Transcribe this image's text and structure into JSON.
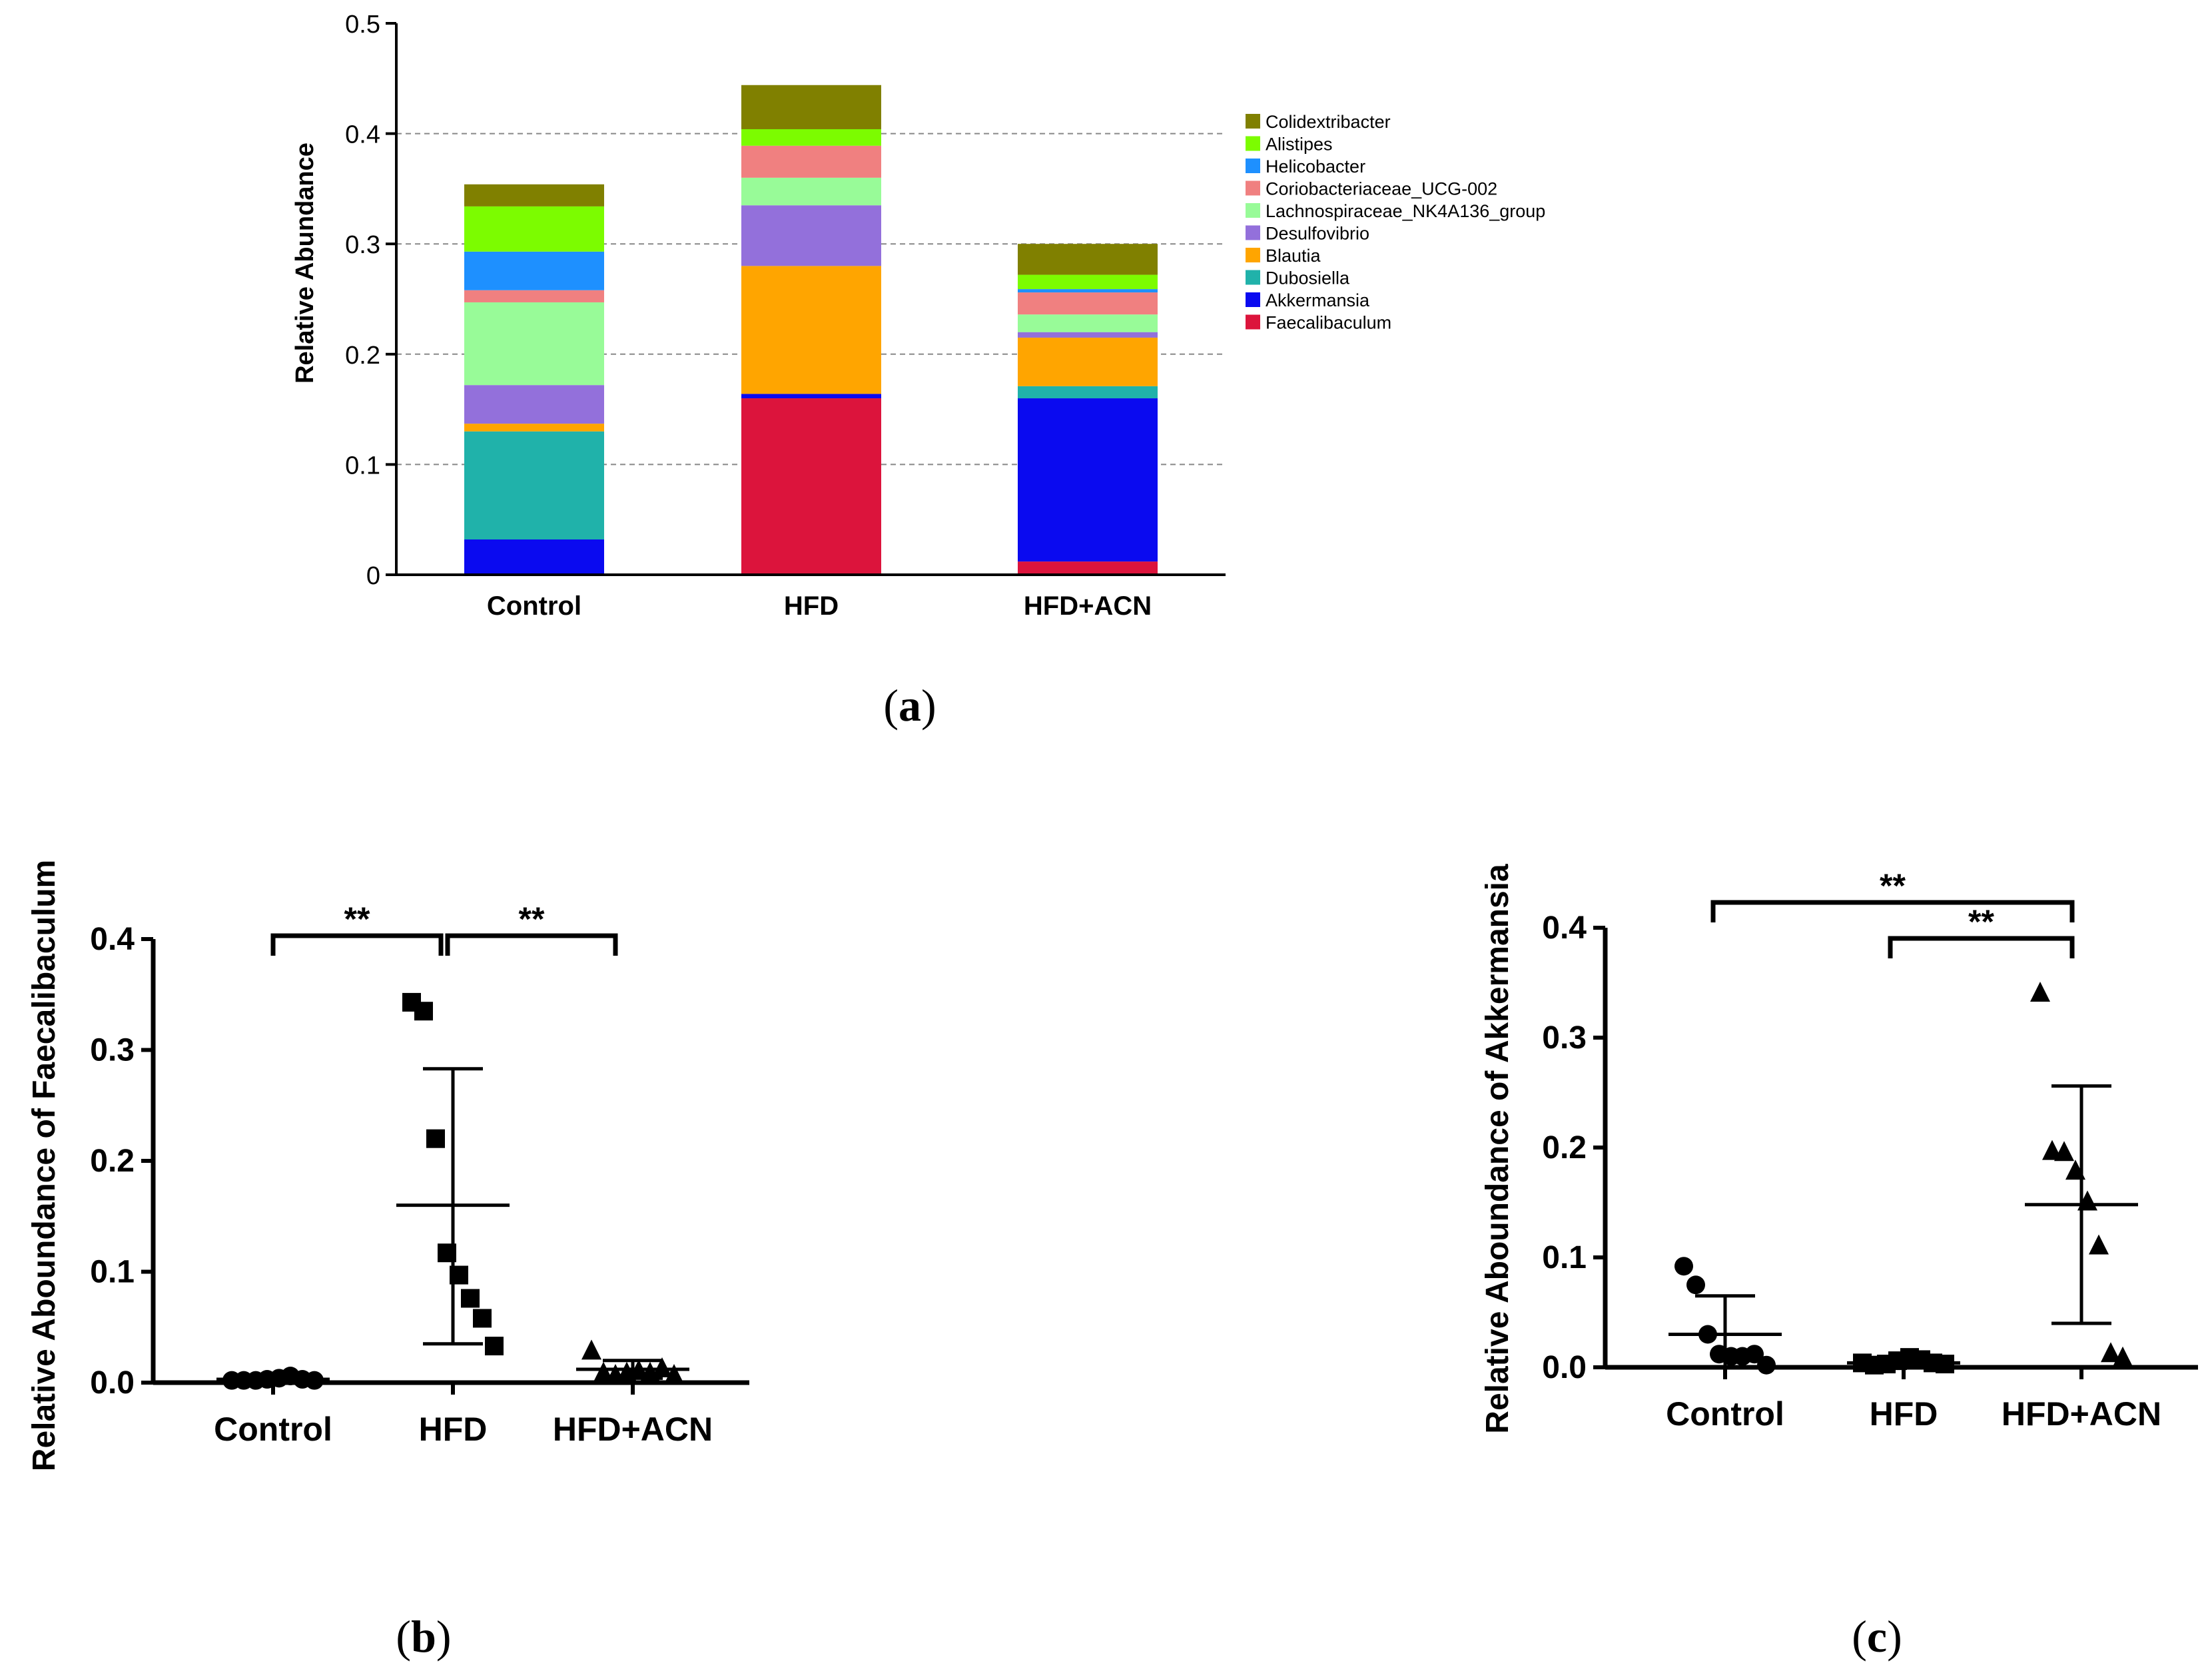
{
  "chart_data": [
    {
      "type": "bar",
      "stacked": true,
      "panel": "(a)",
      "panel_letter": "a",
      "ylabel": "Relative Abundance",
      "xlabel": "",
      "ylim": [
        0,
        0.5
      ],
      "yticks": [
        "0",
        "0.1",
        "0.2",
        "0.3",
        "0.4",
        "0.5"
      ],
      "gridlines": [
        0.1,
        0.2,
        0.3,
        0.4
      ],
      "categories": [
        "Control",
        "HFD",
        "HFD+ACN"
      ],
      "legend_position": "right",
      "series": [
        {
          "name": "Faecalibaculum",
          "color": "#dc143c",
          "values": [
            0.001,
            0.16,
            0.012
          ]
        },
        {
          "name": "Akkermansia",
          "color": "#0a0af0",
          "values": [
            0.031,
            0.004,
            0.148
          ]
        },
        {
          "name": "Dubosiella",
          "color": "#20b2aa",
          "values": [
            0.098,
            0.0,
            0.011
          ]
        },
        {
          "name": "Blautia",
          "color": "#ffa500",
          "values": [
            0.007,
            0.116,
            0.044
          ]
        },
        {
          "name": "Desulfovibrio",
          "color": "#9370db",
          "values": [
            0.035,
            0.055,
            0.005
          ]
        },
        {
          "name": "Lachnospiraceae_NK4A136_group",
          "color": "#98fb98",
          "values": [
            0.075,
            0.025,
            0.016
          ]
        },
        {
          "name": "Coriobacteriaceae_UCG-002",
          "color": "#f08080",
          "values": [
            0.011,
            0.029,
            0.02
          ]
        },
        {
          "name": "Helicobacter",
          "color": "#1e90ff",
          "values": [
            0.035,
            0.0,
            0.003
          ]
        },
        {
          "name": "Alistipes",
          "color": "#7cfc00",
          "values": [
            0.041,
            0.015,
            0.013
          ]
        },
        {
          "name": "Colidextribacter",
          "color": "#808000",
          "values": [
            0.02,
            0.04,
            0.028
          ]
        }
      ]
    },
    {
      "type": "scatter",
      "panel": "(b)",
      "panel_letter": "b",
      "ylabel": "Relative Aboundance of Faecalibaculum",
      "xlabel": "",
      "ylim": [
        0,
        0.4
      ],
      "yticks": [
        "0.0",
        "0.1",
        "0.2",
        "0.3",
        "0.4"
      ],
      "categories": [
        "Control",
        "HFD",
        "HFD+ACN"
      ],
      "significance": [
        {
          "from": "Control",
          "to": "HFD",
          "label": "**"
        },
        {
          "from": "HFD",
          "to": "HFD+ACN",
          "label": "**"
        }
      ],
      "series": [
        {
          "name": "Control",
          "marker": "circle",
          "mean": 0.003,
          "sd_upper": 0.004,
          "sd_lower": 0.001,
          "points": [
            0.002,
            0.002,
            0.002,
            0.003,
            0.004,
            0.006,
            0.003,
            0.002
          ]
        },
        {
          "name": "HFD",
          "marker": "square",
          "mean": 0.16,
          "sd_upper": 0.283,
          "sd_lower": 0.035,
          "points": [
            0.343,
            0.335,
            0.22,
            0.117,
            0.097,
            0.076,
            0.058,
            0.033
          ]
        },
        {
          "name": "HFD+ACN",
          "marker": "triangle",
          "mean": 0.012,
          "sd_upper": 0.02,
          "sd_lower": 0.004,
          "points": [
            0.028,
            0.008,
            0.006,
            0.008,
            0.01,
            0.008,
            0.012,
            0.006
          ]
        }
      ]
    },
    {
      "type": "scatter",
      "panel": "(c)",
      "panel_letter": "c",
      "ylabel": "Relative Aboundance of Akkermansia",
      "xlabel": "",
      "ylim": [
        0,
        0.4
      ],
      "yticks": [
        "0.0",
        "0.1",
        "0.2",
        "0.3",
        "0.4"
      ],
      "categories": [
        "Control",
        "HFD",
        "HFD+ACN"
      ],
      "significance": [
        {
          "from": "Control",
          "to": "HFD+ACN",
          "label": "**"
        },
        {
          "from": "HFD",
          "to": "HFD+ACN",
          "label": "**"
        }
      ],
      "series": [
        {
          "name": "Control",
          "marker": "circle",
          "mean": 0.03,
          "sd_upper": 0.065,
          "sd_lower": 0.0,
          "points": [
            0.092,
            0.075,
            0.03,
            0.012,
            0.01,
            0.01,
            0.012,
            0.002
          ]
        },
        {
          "name": "HFD",
          "marker": "square",
          "mean": 0.004,
          "sd_upper": 0.008,
          "sd_lower": 0.001,
          "points": [
            0.004,
            0.002,
            0.003,
            0.006,
            0.009,
            0.007,
            0.004,
            0.003
          ]
        },
        {
          "name": "HFD+ACN",
          "marker": "triangle",
          "mean": 0.148,
          "sd_upper": 0.256,
          "sd_lower": 0.04,
          "points": [
            0.34,
            0.196,
            0.195,
            0.178,
            0.15,
            0.11,
            0.012,
            0.008
          ]
        }
      ]
    }
  ]
}
